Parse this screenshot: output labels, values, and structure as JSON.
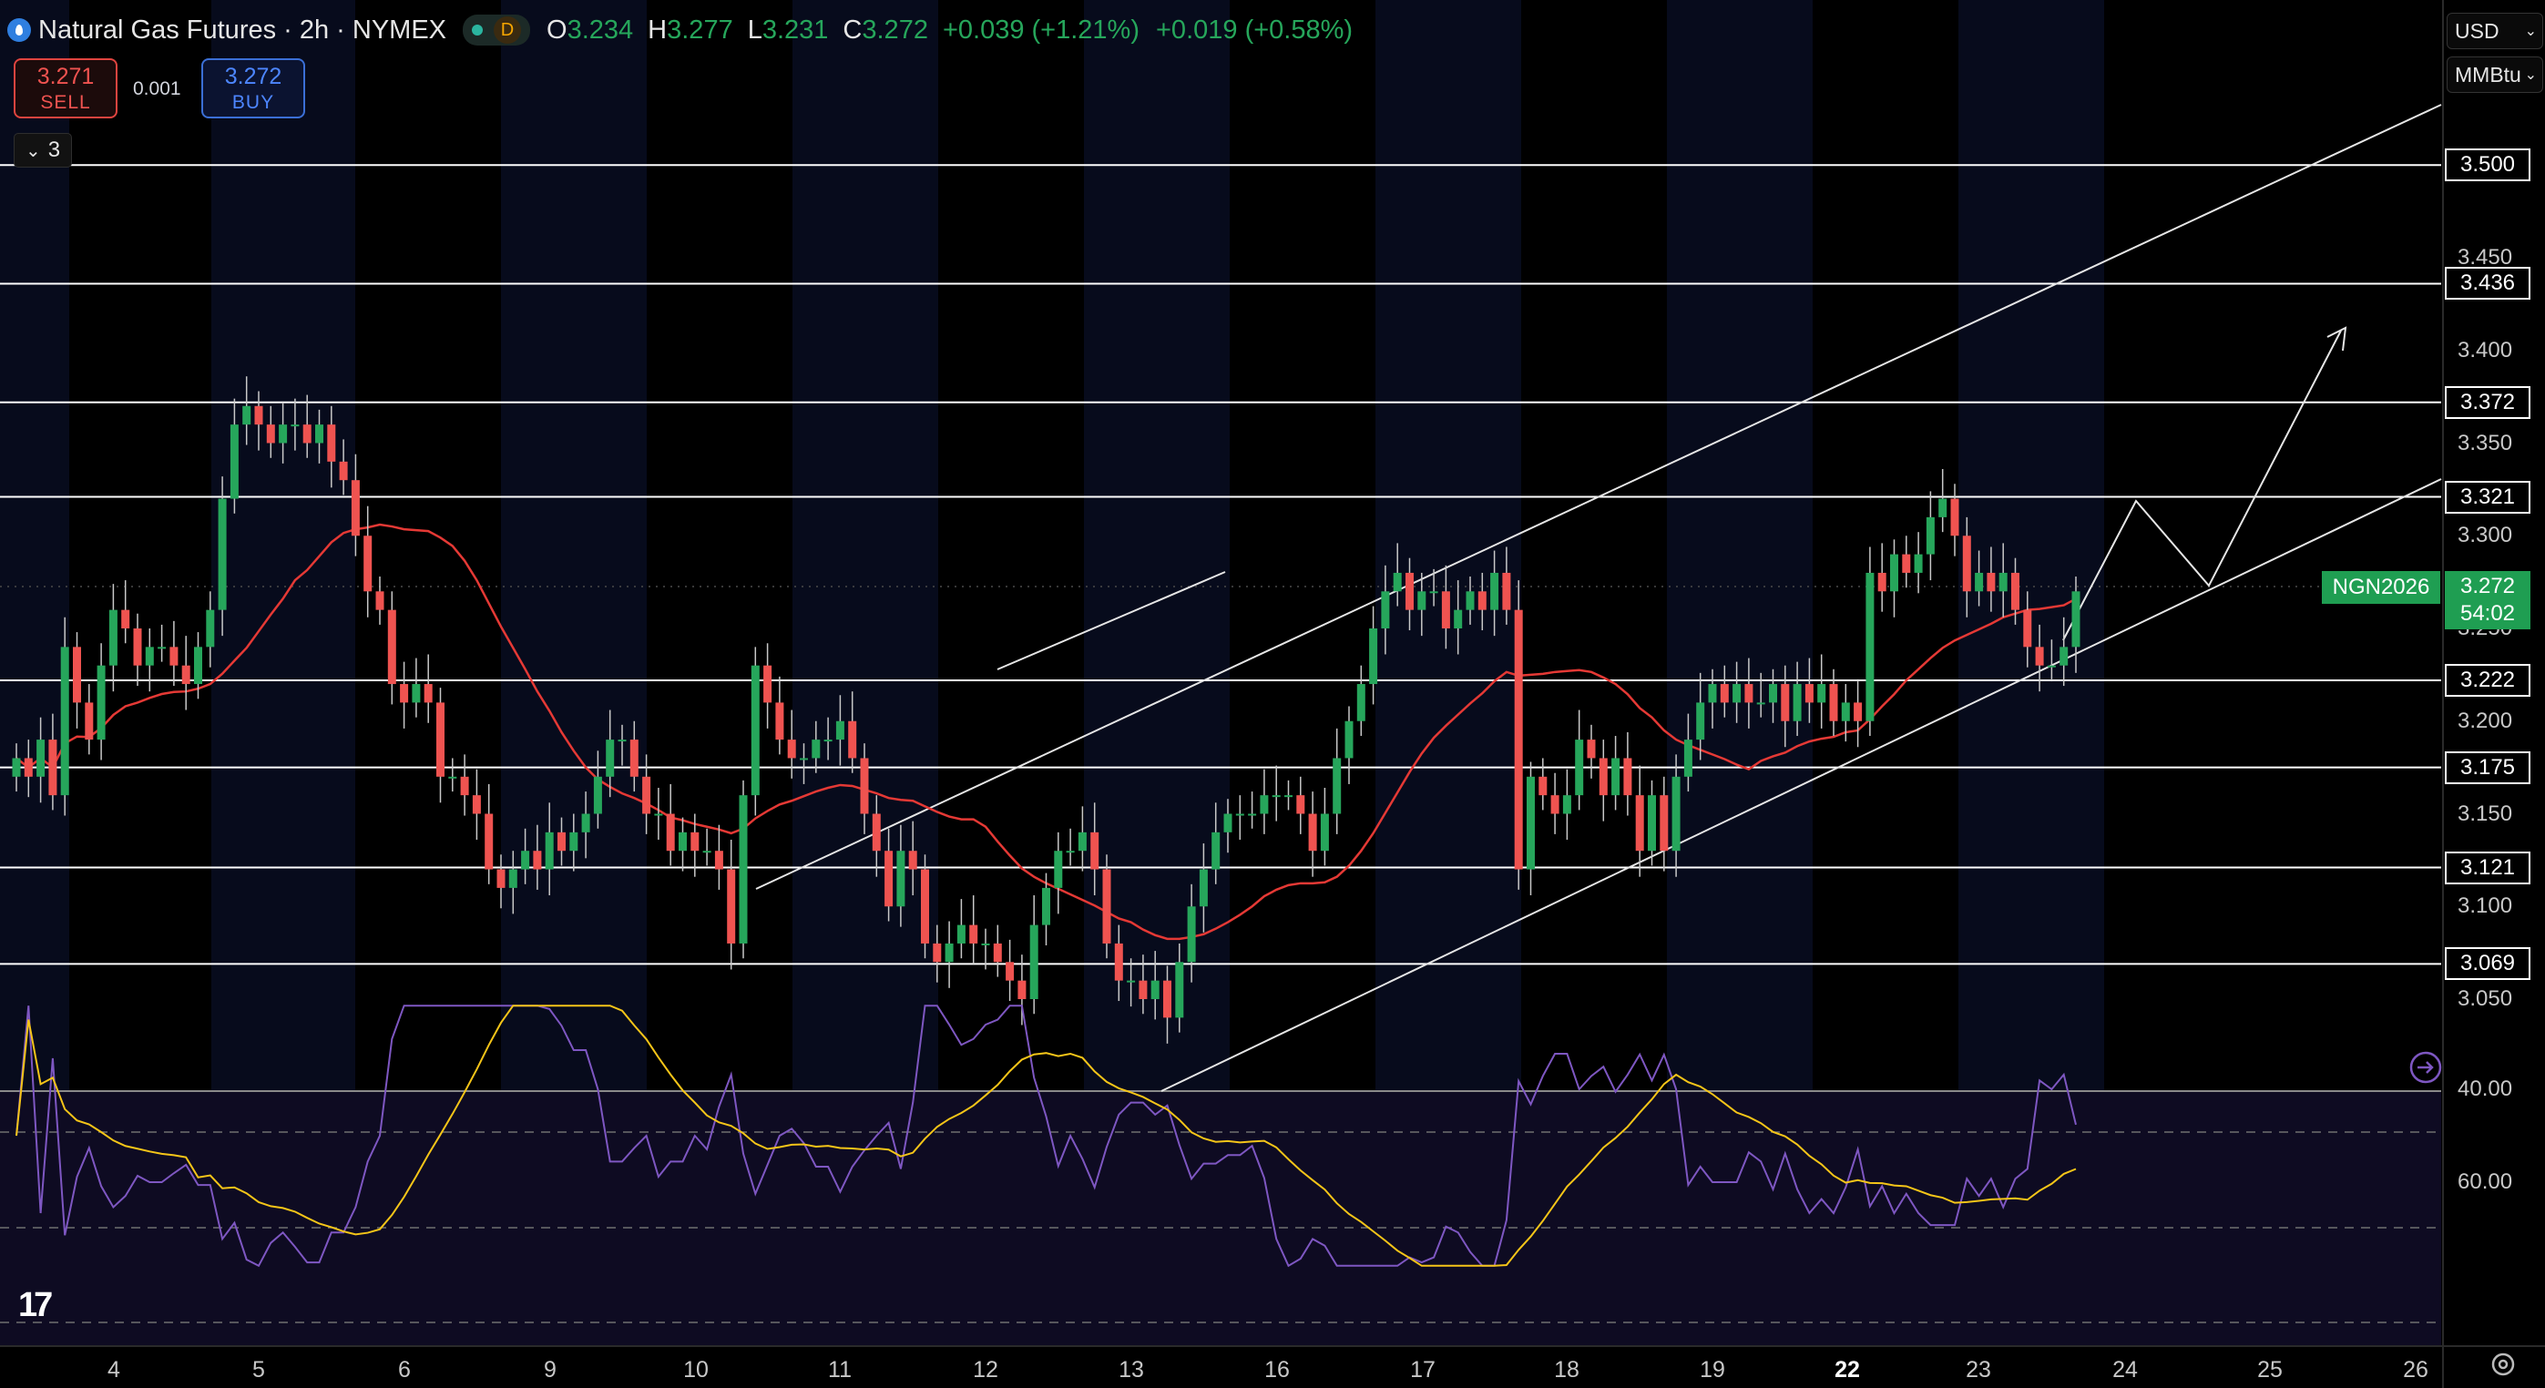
{
  "header": {
    "symbol": "Natural Gas Futures · 2h · NYMEX",
    "badge": "D",
    "o_label": "O",
    "o_value": "3.234",
    "h_label": "H",
    "h_value": "3.277",
    "l_label": "L",
    "l_value": "3.231",
    "c_label": "C",
    "c_value": "3.272",
    "change": "+0.039 (+1.21%)",
    "change2": "+0.019 (+0.58%)"
  },
  "trade": {
    "sell_price": "3.271",
    "sell_label": "SELL",
    "spread": "0.001",
    "buy_price": "3.272",
    "buy_label": "BUY"
  },
  "indicators_toggle": {
    "chevron": "⌄",
    "count": "3"
  },
  "right_panel": {
    "currency": "USD",
    "unit": "MMBtu"
  },
  "last_price": {
    "symbol": "NGN2026",
    "price": "3.272",
    "countdown": "54:02"
  },
  "colors": {
    "up": "#26a65b",
    "down": "#ef5350",
    "ma": "#e53935",
    "rsi": "#7e57c2",
    "rsi_ma": "#f5c518",
    "lines": "#ffffff"
  },
  "chart_data": {
    "type": "candlestick",
    "price_axis": {
      "ticks": [
        "3.450",
        "3.400",
        "3.350",
        "3.300",
        "3.250",
        "3.200",
        "3.150",
        "3.100",
        "3.050"
      ],
      "range": [
        3.01,
        3.52
      ]
    },
    "horizontal_levels": [
      "3.500",
      "3.436",
      "3.372",
      "3.321",
      "3.222",
      "3.175",
      "3.121",
      "3.069"
    ],
    "rsi_axis": {
      "ticks": [
        "60.00",
        "40.00"
      ]
    },
    "date_ticks": [
      {
        "label": "4",
        "bold": false
      },
      {
        "label": "5",
        "bold": false
      },
      {
        "label": "6",
        "bold": false
      },
      {
        "label": "9",
        "bold": false
      },
      {
        "label": "10",
        "bold": false
      },
      {
        "label": "11",
        "bold": false
      },
      {
        "label": "12",
        "bold": false
      },
      {
        "label": "13",
        "bold": false
      },
      {
        "label": "16",
        "bold": false
      },
      {
        "label": "17",
        "bold": false
      },
      {
        "label": "18",
        "bold": false
      },
      {
        "label": "19",
        "bold": false
      },
      {
        "label": "22",
        "bold": true
      },
      {
        "label": "23",
        "bold": false
      },
      {
        "label": "24",
        "bold": false
      },
      {
        "label": "25",
        "bold": false
      },
      {
        "label": "26",
        "bold": false
      }
    ],
    "closes": [
      3.18,
      3.17,
      3.19,
      3.16,
      3.24,
      3.21,
      3.19,
      3.23,
      3.26,
      3.25,
      3.23,
      3.24,
      3.24,
      3.23,
      3.22,
      3.24,
      3.26,
      3.32,
      3.36,
      3.37,
      3.36,
      3.35,
      3.36,
      3.36,
      3.35,
      3.36,
      3.34,
      3.33,
      3.3,
      3.27,
      3.26,
      3.22,
      3.21,
      3.22,
      3.21,
      3.17,
      3.17,
      3.16,
      3.15,
      3.12,
      3.11,
      3.12,
      3.13,
      3.12,
      3.14,
      3.13,
      3.14,
      3.15,
      3.17,
      3.19,
      3.19,
      3.17,
      3.15,
      3.15,
      3.13,
      3.14,
      3.13,
      3.13,
      3.12,
      3.08,
      3.16,
      3.23,
      3.21,
      3.19,
      3.18,
      3.18,
      3.19,
      3.19,
      3.2,
      3.18,
      3.15,
      3.13,
      3.1,
      3.13,
      3.12,
      3.08,
      3.07,
      3.08,
      3.09,
      3.08,
      3.08,
      3.07,
      3.06,
      3.05,
      3.09,
      3.11,
      3.13,
      3.13,
      3.14,
      3.12,
      3.08,
      3.06,
      3.06,
      3.05,
      3.06,
      3.04,
      3.07,
      3.1,
      3.12,
      3.14,
      3.15,
      3.15,
      3.15,
      3.16,
      3.16,
      3.16,
      3.15,
      3.13,
      3.15,
      3.18,
      3.2,
      3.22,
      3.25,
      3.27,
      3.28,
      3.26,
      3.27,
      3.27,
      3.25,
      3.26,
      3.27,
      3.26,
      3.28,
      3.26,
      3.12,
      3.17,
      3.16,
      3.15,
      3.16,
      3.19,
      3.18,
      3.16,
      3.18,
      3.16,
      3.13,
      3.16,
      3.13,
      3.17,
      3.19,
      3.21,
      3.22,
      3.21,
      3.22,
      3.21,
      3.21,
      3.22,
      3.2,
      3.22,
      3.21,
      3.22,
      3.2,
      3.21,
      3.2,
      3.28,
      3.27,
      3.29,
      3.28,
      3.29,
      3.31,
      3.32,
      3.3,
      3.27,
      3.28,
      3.27,
      3.28,
      3.26,
      3.24,
      3.23,
      3.23,
      3.24,
      3.27
    ]
  }
}
